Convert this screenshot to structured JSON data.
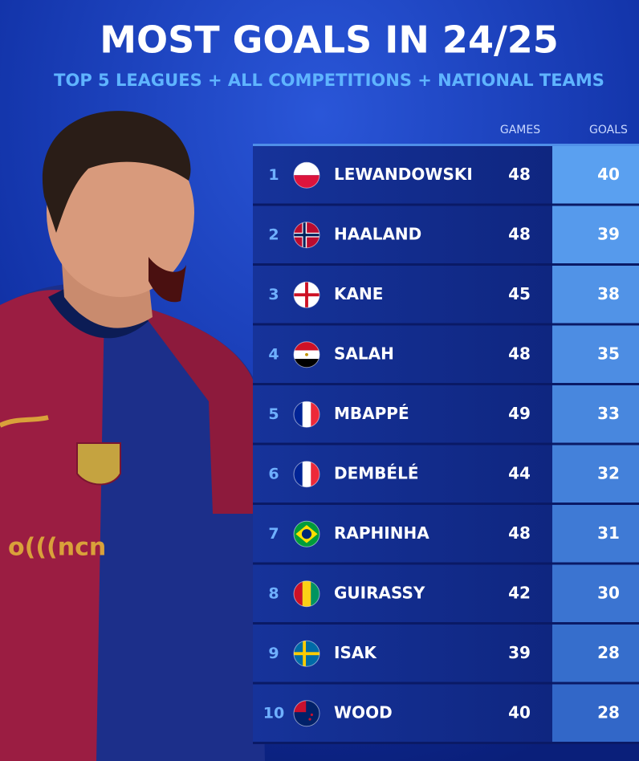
{
  "header": {
    "title": "MOST GOALS IN 24/25",
    "subtitle": "TOP 5 LEAGUES + ALL COMPETITIONS + NATIONAL TEAMS"
  },
  "table": {
    "columns": [
      "GAMES",
      "GOALS"
    ],
    "rows": [
      [
        1,
        "LEWANDOWSKI",
        48,
        40
      ],
      [
        2,
        "HAALAND",
        48,
        39
      ],
      [
        3,
        "KANE",
        45,
        38
      ],
      [
        4,
        "SALAH",
        48,
        35
      ],
      [
        5,
        "MBAPPÉ",
        49,
        33
      ],
      [
        6,
        "DEMBÉLÉ",
        44,
        32
      ],
      [
        7,
        "RAPHINHA",
        48,
        31
      ],
      [
        8,
        "GUIRASSY",
        42,
        30
      ],
      [
        9,
        "ISAK",
        39,
        28
      ],
      [
        10,
        "WOOD",
        40,
        28
      ]
    ]
  }
}
